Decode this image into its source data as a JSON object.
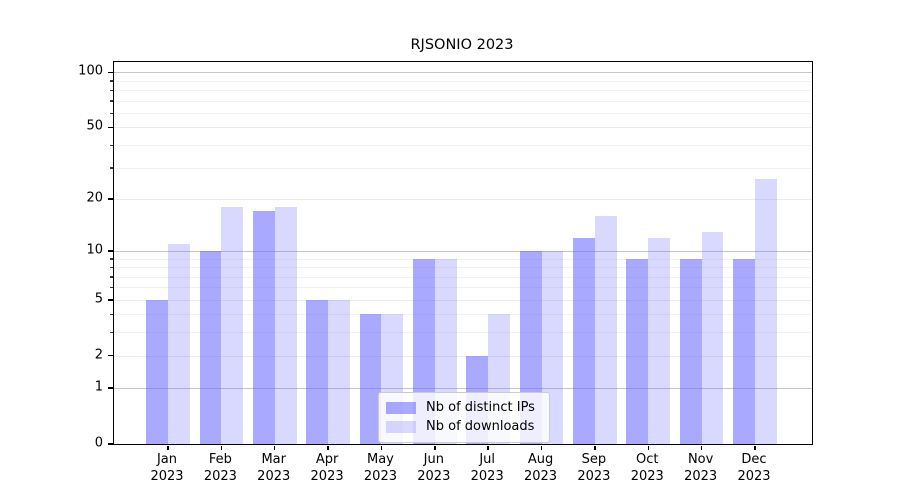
{
  "chart_data": {
    "type": "bar",
    "title": "RJSONIO 2023",
    "categories": [
      "Jan",
      "Feb",
      "Mar",
      "Apr",
      "May",
      "Jun",
      "Jul",
      "Aug",
      "Sep",
      "Oct",
      "Nov",
      "Dec"
    ],
    "x_tick_year": "2023",
    "series": [
      {
        "name": "Nb of distinct IPs",
        "values": [
          5,
          10,
          17,
          5,
          4,
          9,
          2,
          10,
          12,
          9,
          9,
          9
        ],
        "color": "#6666ff",
        "opacity": 0.56
      },
      {
        "name": "Nb of downloads",
        "values": [
          11,
          18,
          18,
          5,
          4,
          9,
          4,
          10,
          16,
          12,
          13,
          26
        ],
        "color": "#6666ff",
        "opacity": 0.25
      }
    ],
    "y_scale": "log1p",
    "ylim": [
      0,
      114
    ],
    "y_major_ticks": [
      0,
      1,
      2,
      5,
      10,
      20,
      50,
      100
    ],
    "y_minor_ticks": [
      3,
      4,
      6,
      7,
      8,
      9,
      30,
      40,
      60,
      70,
      80,
      90
    ],
    "decade_gridlines": [
      1,
      10,
      100
    ],
    "grid": true,
    "legend_position": "lower center",
    "colors": {
      "axis": "#000000",
      "grid_decade": "#c6c6c6",
      "grid_labeled": "#ebebeb",
      "grid_minor": "#f2f2f2",
      "legend_border": "#cccccc"
    }
  }
}
